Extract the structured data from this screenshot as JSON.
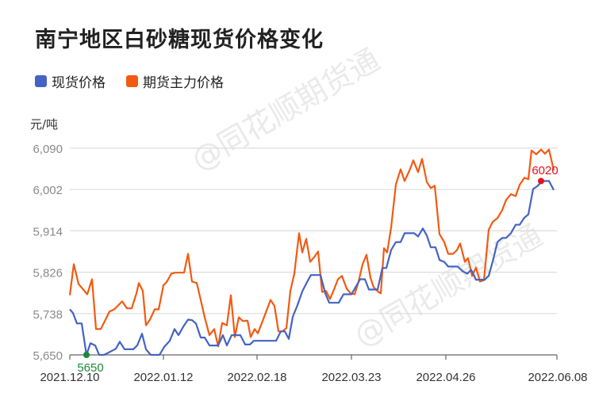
{
  "title": "南宁地区白砂糖现货价格变化",
  "legend": [
    {
      "label": "现货价格",
      "color": "#4463c4"
    },
    {
      "label": "期货主力价格",
      "color": "#f25a12"
    }
  ],
  "unit_label": "元/吨",
  "watermark": "@同花顺期货通",
  "annotations": {
    "min_label": "5650",
    "min_color": "#1a8a3a",
    "max_label": "6020",
    "max_color": "#e8101a"
  },
  "chart_data": {
    "type": "line",
    "title": "南宁地区白砂糖现货价格变化",
    "xlabel": "",
    "ylabel": "元/吨",
    "ylim": [
      5650,
      6090
    ],
    "yticks": [
      "5,650",
      "5,738",
      "5,826",
      "5,914",
      "6,002",
      "6,090"
    ],
    "xticks": [
      "2021.12.10",
      "2022.01.12",
      "2022.02.18",
      "2022.03.23",
      "2022.04.26",
      "2022.06.08"
    ],
    "grid": true,
    "legend_position": "top-left",
    "series": [
      {
        "name": "现货价格",
        "color": "#4463c4",
        "points": [
          [
            88,
            5747
          ],
          [
            92,
            5739
          ],
          [
            97,
            5717
          ],
          [
            103,
            5717
          ],
          [
            109,
            5650
          ],
          [
            114,
            5675
          ],
          [
            120,
            5670
          ],
          [
            125,
            5650
          ],
          [
            131,
            5650
          ],
          [
            137,
            5655
          ],
          [
            146,
            5663
          ],
          [
            151,
            5678
          ],
          [
            157,
            5662
          ],
          [
            168,
            5662
          ],
          [
            173,
            5670
          ],
          [
            179,
            5695
          ],
          [
            184,
            5662
          ],
          [
            190,
            5650
          ],
          [
            201,
            5650
          ],
          [
            207,
            5667
          ],
          [
            214,
            5680
          ],
          [
            220,
            5705
          ],
          [
            225,
            5692
          ],
          [
            231,
            5710
          ],
          [
            237,
            5725
          ],
          [
            242,
            5724
          ],
          [
            247,
            5717
          ],
          [
            253,
            5687
          ],
          [
            258,
            5687
          ],
          [
            264,
            5670
          ],
          [
            275,
            5670
          ],
          [
            281,
            5692
          ],
          [
            286,
            5670
          ],
          [
            292,
            5692
          ],
          [
            303,
            5692
          ],
          [
            309,
            5672
          ],
          [
            315,
            5672
          ],
          [
            320,
            5680
          ],
          [
            348,
            5680
          ],
          [
            354,
            5700
          ],
          [
            359,
            5700
          ],
          [
            364,
            5684
          ],
          [
            369,
            5731
          ],
          [
            375,
            5756
          ],
          [
            381,
            5785
          ],
          [
            387,
            5805
          ],
          [
            392,
            5820
          ],
          [
            404,
            5820
          ],
          [
            410,
            5781
          ],
          [
            415,
            5761
          ],
          [
            427,
            5761
          ],
          [
            433,
            5779
          ],
          [
            443,
            5779
          ],
          [
            454,
            5811
          ],
          [
            460,
            5811
          ],
          [
            465,
            5789
          ],
          [
            476,
            5789
          ],
          [
            482,
            5835
          ],
          [
            487,
            5835
          ],
          [
            493,
            5873
          ],
          [
            499,
            5890
          ],
          [
            505,
            5890
          ],
          [
            510,
            5909
          ],
          [
            522,
            5909
          ],
          [
            527,
            5902
          ],
          [
            533,
            5919
          ],
          [
            538,
            5904
          ],
          [
            543,
            5879
          ],
          [
            549,
            5879
          ],
          [
            554,
            5852
          ],
          [
            560,
            5848
          ],
          [
            565,
            5838
          ],
          [
            577,
            5838
          ],
          [
            583,
            5828
          ],
          [
            589,
            5823
          ],
          [
            594,
            5831
          ],
          [
            600,
            5810
          ],
          [
            611,
            5810
          ],
          [
            616,
            5818
          ],
          [
            622,
            5855
          ],
          [
            627,
            5890
          ],
          [
            633,
            5899
          ],
          [
            638,
            5899
          ],
          [
            644,
            5909
          ],
          [
            650,
            5927
          ],
          [
            655,
            5927
          ],
          [
            661,
            5942
          ],
          [
            666,
            5949
          ],
          [
            672,
            6003
          ],
          [
            678,
            6010
          ],
          [
            683,
            6020
          ],
          [
            692,
            6020
          ],
          [
            698,
            6001
          ]
        ]
      },
      {
        "name": "期货主力价格",
        "color": "#f25a12",
        "points": [
          [
            88,
            5777
          ],
          [
            93,
            5843
          ],
          [
            99,
            5801
          ],
          [
            104,
            5791
          ],
          [
            110,
            5779
          ],
          [
            116,
            5811
          ],
          [
            121,
            5705
          ],
          [
            127,
            5705
          ],
          [
            133,
            5725
          ],
          [
            138,
            5742
          ],
          [
            144,
            5747
          ],
          [
            150,
            5757
          ],
          [
            154,
            5764
          ],
          [
            160,
            5749
          ],
          [
            166,
            5749
          ],
          [
            172,
            5781
          ],
          [
            175,
            5803
          ],
          [
            180,
            5786
          ],
          [
            184,
            5713
          ],
          [
            189,
            5725
          ],
          [
            195,
            5747
          ],
          [
            200,
            5747
          ],
          [
            206,
            5798
          ],
          [
            210,
            5805
          ],
          [
            216,
            5823
          ],
          [
            221,
            5825
          ],
          [
            232,
            5825
          ],
          [
            237,
            5865
          ],
          [
            242,
            5806
          ],
          [
            248,
            5803
          ],
          [
            253,
            5767
          ],
          [
            258,
            5730
          ],
          [
            264,
            5692
          ],
          [
            270,
            5705
          ],
          [
            275,
            5668
          ],
          [
            280,
            5718
          ],
          [
            286,
            5713
          ],
          [
            291,
            5777
          ],
          [
            296,
            5688
          ],
          [
            301,
            5730
          ],
          [
            306,
            5722
          ],
          [
            312,
            5723
          ],
          [
            316,
            5688
          ],
          [
            321,
            5705
          ],
          [
            325,
            5696
          ],
          [
            331,
            5722
          ],
          [
            341,
            5767
          ],
          [
            346,
            5754
          ],
          [
            351,
            5700
          ],
          [
            356,
            5700
          ],
          [
            361,
            5707
          ],
          [
            366,
            5786
          ],
          [
            371,
            5823
          ],
          [
            377,
            5909
          ],
          [
            381,
            5868
          ],
          [
            386,
            5897
          ],
          [
            391,
            5848
          ],
          [
            396,
            5858
          ],
          [
            401,
            5870
          ],
          [
            406,
            5784
          ],
          [
            411,
            5786
          ],
          [
            416,
            5769
          ],
          [
            421,
            5789
          ],
          [
            426,
            5811
          ],
          [
            431,
            5818
          ],
          [
            437,
            5791
          ],
          [
            442,
            5781
          ],
          [
            447,
            5779
          ],
          [
            452,
            5806
          ],
          [
            457,
            5843
          ],
          [
            462,
            5863
          ],
          [
            467,
            5814
          ],
          [
            471,
            5794
          ],
          [
            477,
            5784
          ],
          [
            480,
            5781
          ],
          [
            484,
            5877
          ],
          [
            488,
            5868
          ],
          [
            493,
            5921
          ],
          [
            499,
            6013
          ],
          [
            505,
            6045
          ],
          [
            510,
            6020
          ],
          [
            516,
            6042
          ],
          [
            521,
            6064
          ],
          [
            527,
            6039
          ],
          [
            532,
            6067
          ],
          [
            538,
            6018
          ],
          [
            543,
            6005
          ],
          [
            548,
            6010
          ],
          [
            554,
            5907
          ],
          [
            560,
            5890
          ],
          [
            565,
            5865
          ],
          [
            571,
            5865
          ],
          [
            576,
            5873
          ],
          [
            580,
            5887
          ],
          [
            586,
            5848
          ],
          [
            590,
            5856
          ],
          [
            595,
            5818
          ],
          [
            600,
            5836
          ],
          [
            605,
            5806
          ],
          [
            610,
            5809
          ],
          [
            616,
            5916
          ],
          [
            621,
            5933
          ],
          [
            627,
            5941
          ],
          [
            633,
            5958
          ],
          [
            638,
            5980
          ],
          [
            644,
            5992
          ],
          [
            650,
            5988
          ],
          [
            655,
            6012
          ],
          [
            661,
            6027
          ],
          [
            666,
            6024
          ],
          [
            670,
            6085
          ],
          [
            676,
            6077
          ],
          [
            682,
            6087
          ],
          [
            687,
            6078
          ],
          [
            692,
            6087
          ],
          [
            698,
            6043
          ]
        ]
      }
    ]
  }
}
